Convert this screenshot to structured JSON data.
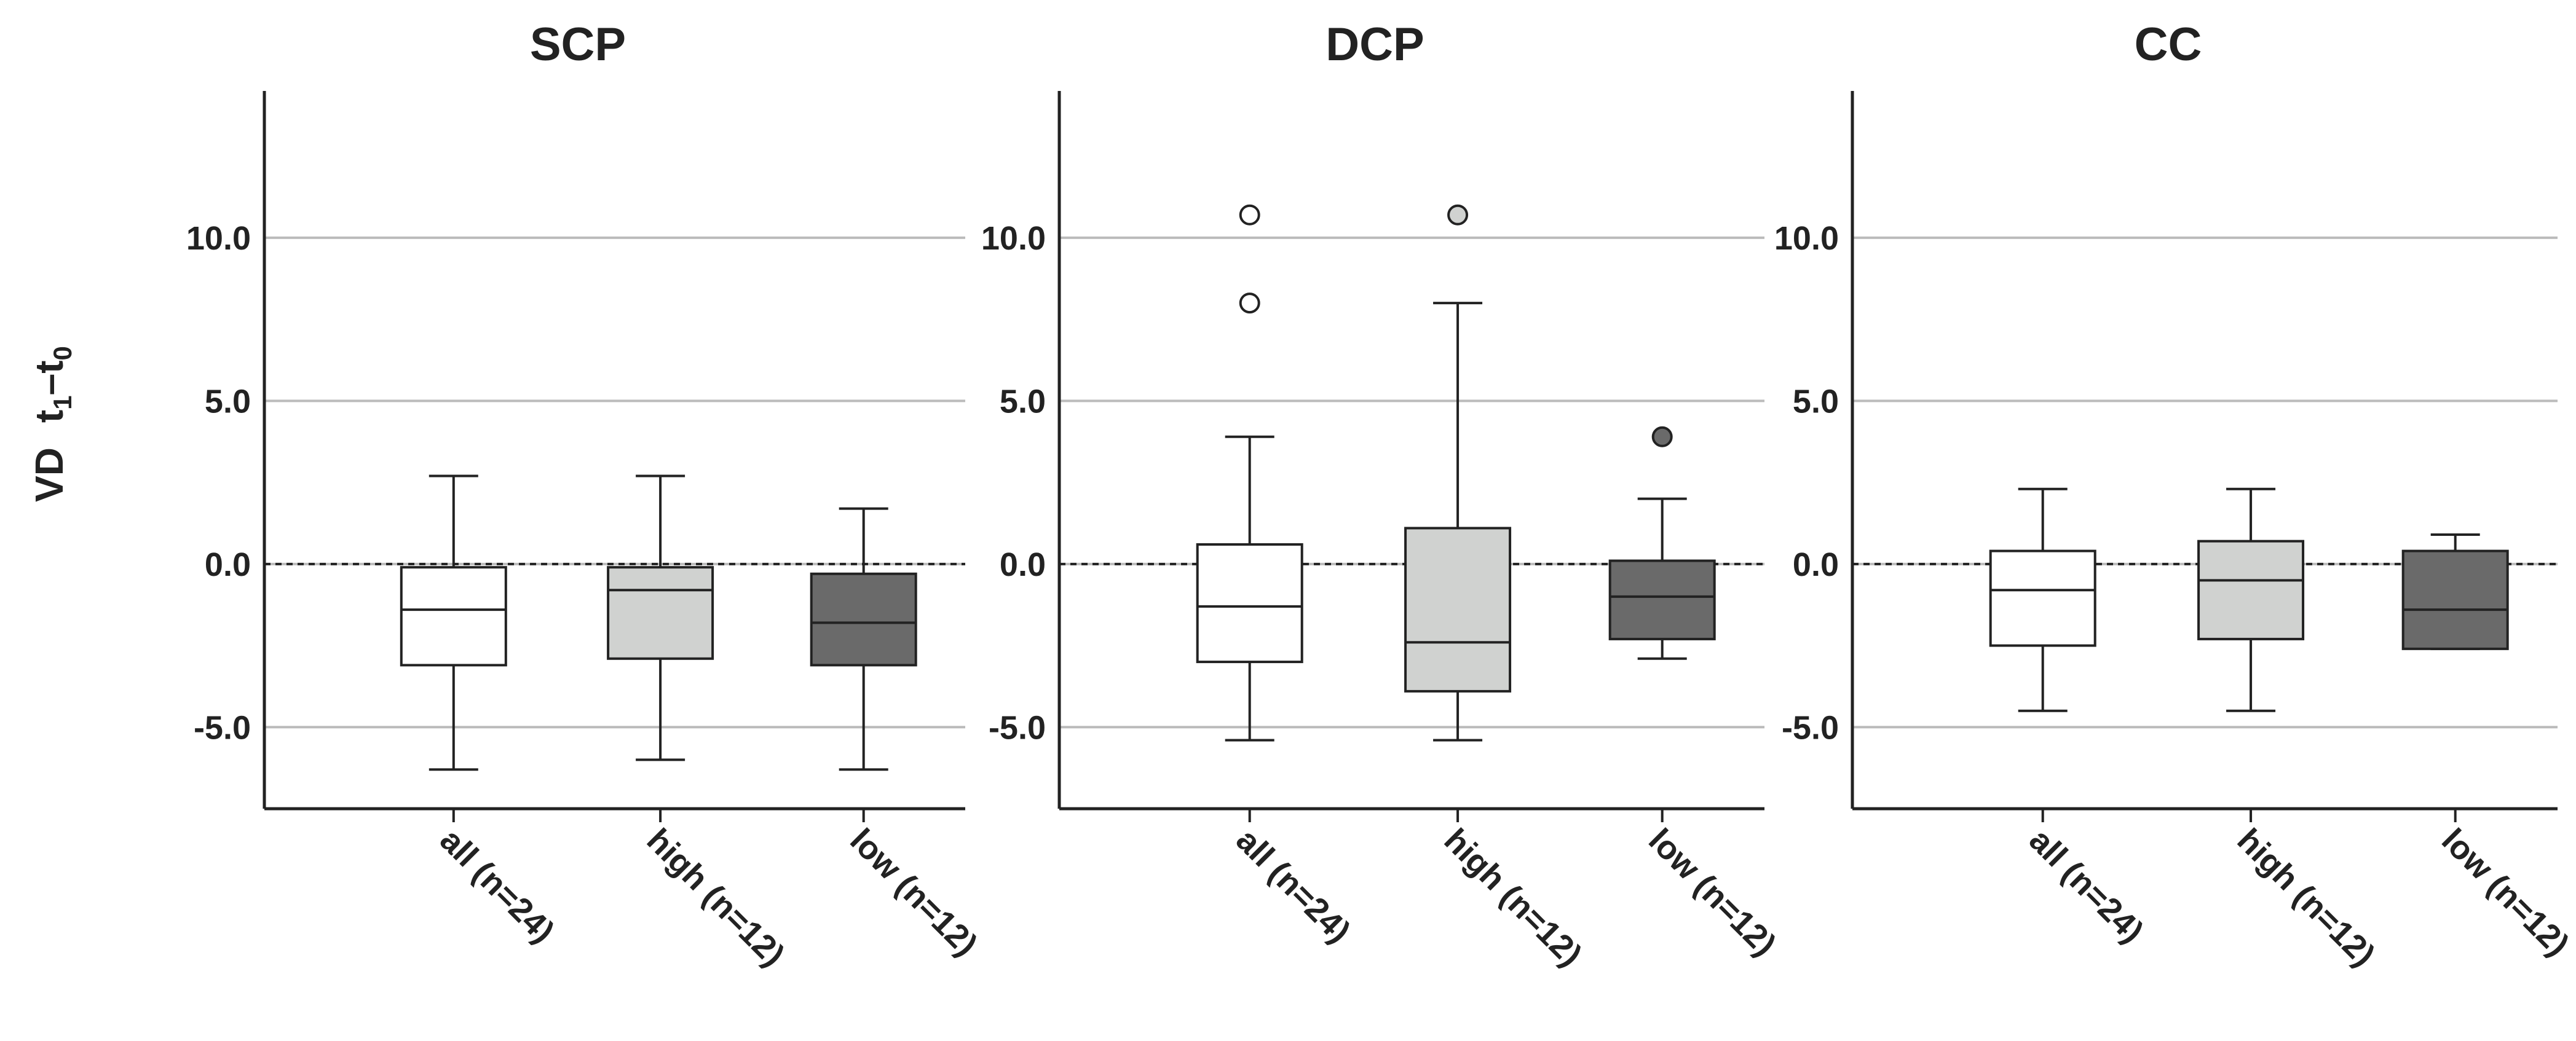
{
  "chart_data": {
    "type": "box",
    "ylabel": {
      "main": "VD",
      "t1": "t",
      "t1_sub": "1",
      "dash": "–",
      "t0": "t",
      "t0_sub": "0"
    },
    "ylim": [
      -7.5,
      14.5
    ],
    "yticks": [
      10.0,
      5.0,
      0.0,
      -5.0
    ],
    "ytick_labels": [
      "10.0",
      "5.0",
      "0.0",
      "-5.0"
    ],
    "reference_line": 0,
    "categories": [
      "all (n=24)",
      "high (n=12)",
      "low (n=12)"
    ],
    "colors": {
      "all": "#ffffff",
      "high": "#d0d2d0",
      "low": "#6a6a6a",
      "stroke": "#222222",
      "grid": "#bbbbbb"
    },
    "panels": [
      {
        "title": "SCP",
        "boxes": [
          {
            "group": "all",
            "whisker_low": -6.3,
            "q1": -3.1,
            "median": -1.4,
            "q3": -0.1,
            "whisker_high": 2.7,
            "outliers": []
          },
          {
            "group": "high",
            "whisker_low": -6.0,
            "q1": -2.9,
            "median": -0.8,
            "q3": -0.1,
            "whisker_high": 2.7,
            "outliers": []
          },
          {
            "group": "low",
            "whisker_low": -6.3,
            "q1": -3.1,
            "median": -1.8,
            "q3": -0.3,
            "whisker_high": 1.7,
            "outliers": []
          }
        ]
      },
      {
        "title": "DCP",
        "boxes": [
          {
            "group": "all",
            "whisker_low": -5.4,
            "q1": -3.0,
            "median": -1.3,
            "q3": 0.6,
            "whisker_high": 3.9,
            "outliers": [
              10.7,
              8.0
            ]
          },
          {
            "group": "high",
            "whisker_low": -5.4,
            "q1": -3.9,
            "median": -2.4,
            "q3": 1.1,
            "whisker_high": 8.0,
            "outliers": [
              10.7
            ]
          },
          {
            "group": "low",
            "whisker_low": -2.9,
            "q1": -2.3,
            "median": -1.0,
            "q3": 0.1,
            "whisker_high": 2.0,
            "outliers": [
              3.9
            ]
          }
        ]
      },
      {
        "title": "CC",
        "boxes": [
          {
            "group": "all",
            "whisker_low": -4.5,
            "q1": -2.5,
            "median": -0.8,
            "q3": 0.4,
            "whisker_high": 2.3,
            "outliers": []
          },
          {
            "group": "high",
            "whisker_low": -4.5,
            "q1": -2.3,
            "median": -0.5,
            "q3": 0.7,
            "whisker_high": 2.3,
            "outliers": []
          },
          {
            "group": "low",
            "whisker_low": -2.6,
            "q1": -2.6,
            "median": -1.4,
            "q3": 0.4,
            "whisker_high": 0.9,
            "outliers": []
          }
        ]
      }
    ]
  }
}
